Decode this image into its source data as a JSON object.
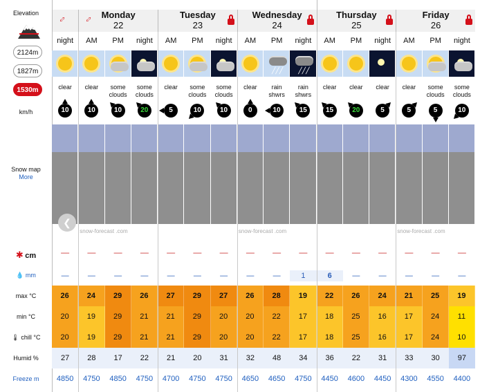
{
  "left": {
    "elevation_title": "Elevation",
    "elevations": [
      "2124m",
      "1827m",
      "1530m"
    ],
    "wind_unit": "km/h",
    "snowmap_label": "Snow map",
    "snowmap_more": "More",
    "snow_unit": "cm",
    "rain_unit": "mm",
    "max_label": "max °C",
    "min_label": "min °C",
    "chill_label": "chill °C",
    "humid_label": "Humid %",
    "freeze_label": "Freeze m"
  },
  "days": [
    {
      "name": "",
      "num": ""
    },
    {
      "name": "Monday",
      "num": "22"
    },
    {
      "name": "Tuesday",
      "num": "23"
    },
    {
      "name": "Wednesday",
      "num": "24"
    },
    {
      "name": "Thursday",
      "num": "25"
    },
    {
      "name": "Friday",
      "num": "26"
    }
  ],
  "periods": [
    "night",
    "AM",
    "PM",
    "night",
    "AM",
    "PM",
    "night",
    "AM",
    "PM",
    "night",
    "AM",
    "PM",
    "night",
    "AM",
    "PM",
    "night"
  ],
  "weather": [
    {
      "icon": "sun",
      "desc": "clear"
    },
    {
      "icon": "sun",
      "desc": "clear"
    },
    {
      "icon": "sun-cloud",
      "desc": "some clouds"
    },
    {
      "icon": "moon-cloud",
      "desc": "some clouds"
    },
    {
      "icon": "sun",
      "desc": "clear"
    },
    {
      "icon": "sun-cloud",
      "desc": "some clouds"
    },
    {
      "icon": "moon-cloud",
      "desc": "some clouds"
    },
    {
      "icon": "sun",
      "desc": "clear"
    },
    {
      "icon": "rain-cloud",
      "desc": "rain shwrs"
    },
    {
      "icon": "rain-cloud-night",
      "desc": "rain shwrs"
    },
    {
      "icon": "sun",
      "desc": "clear"
    },
    {
      "icon": "sun",
      "desc": "clear"
    },
    {
      "icon": "moon",
      "desc": "clear"
    },
    {
      "icon": "sun",
      "desc": "clear"
    },
    {
      "icon": "sun-cloud",
      "desc": "some clouds"
    },
    {
      "icon": "moon-cloud",
      "desc": "some clouds"
    }
  ],
  "wind": [
    {
      "speed": "10",
      "dir": "up",
      "green": false
    },
    {
      "speed": "10",
      "dir": "up",
      "green": false
    },
    {
      "speed": "10",
      "dir": "upleft",
      "green": false
    },
    {
      "speed": "20",
      "dir": "upleft",
      "green": true
    },
    {
      "speed": "5",
      "dir": "left",
      "green": false
    },
    {
      "speed": "10",
      "dir": "downleft",
      "green": false
    },
    {
      "speed": "10",
      "dir": "upleft",
      "green": false
    },
    {
      "speed": "0",
      "dir": "up",
      "green": false
    },
    {
      "speed": "10",
      "dir": "left",
      "green": false
    },
    {
      "speed": "15",
      "dir": "upleft",
      "green": false
    },
    {
      "speed": "15",
      "dir": "upleft",
      "green": false
    },
    {
      "speed": "20",
      "dir": "upleft",
      "green": true
    },
    {
      "speed": "5",
      "dir": "upright",
      "green": false
    },
    {
      "speed": "5",
      "dir": "upright",
      "green": false
    },
    {
      "speed": "5",
      "dir": "down",
      "green": false
    },
    {
      "speed": "10",
      "dir": "downleft",
      "green": false
    }
  ],
  "attribution": "snow-forecast .com",
  "snow": [
    "—",
    "—",
    "—",
    "—",
    "—",
    "—",
    "—",
    "—",
    "—",
    "—",
    "—",
    "—",
    "—",
    "—",
    "—",
    "—"
  ],
  "rain": [
    "—",
    "—",
    "—",
    "—",
    "—",
    "—",
    "—",
    "—",
    "—",
    "1",
    "6",
    "—",
    "—",
    "—",
    "—",
    "—"
  ],
  "max_temp": [
    "26",
    "24",
    "29",
    "26",
    "27",
    "29",
    "27",
    "26",
    "28",
    "19",
    "22",
    "26",
    "24",
    "21",
    "25",
    "19"
  ],
  "min_temp": [
    "20",
    "19",
    "29",
    "21",
    "21",
    "29",
    "20",
    "20",
    "22",
    "17",
    "18",
    "25",
    "16",
    "17",
    "24",
    "11"
  ],
  "chill_temp": [
    "20",
    "19",
    "29",
    "21",
    "21",
    "29",
    "20",
    "20",
    "22",
    "17",
    "18",
    "25",
    "16",
    "17",
    "24",
    "10"
  ],
  "humidity": [
    "27",
    "28",
    "17",
    "22",
    "21",
    "20",
    "31",
    "32",
    "48",
    "34",
    "36",
    "22",
    "31",
    "33",
    "30",
    "97"
  ],
  "freeze": [
    "4850",
    "4750",
    "4850",
    "4750",
    "4700",
    "4750",
    "4750",
    "4650",
    "4650",
    "4750",
    "4450",
    "4600",
    "4450",
    "4300",
    "4550",
    "4400"
  ],
  "colors": {
    "accent": "#d4101a",
    "link": "#1f5fbf",
    "hot": "#f08a10",
    "warm": "#f6b40a",
    "mild": "#ffd700"
  }
}
